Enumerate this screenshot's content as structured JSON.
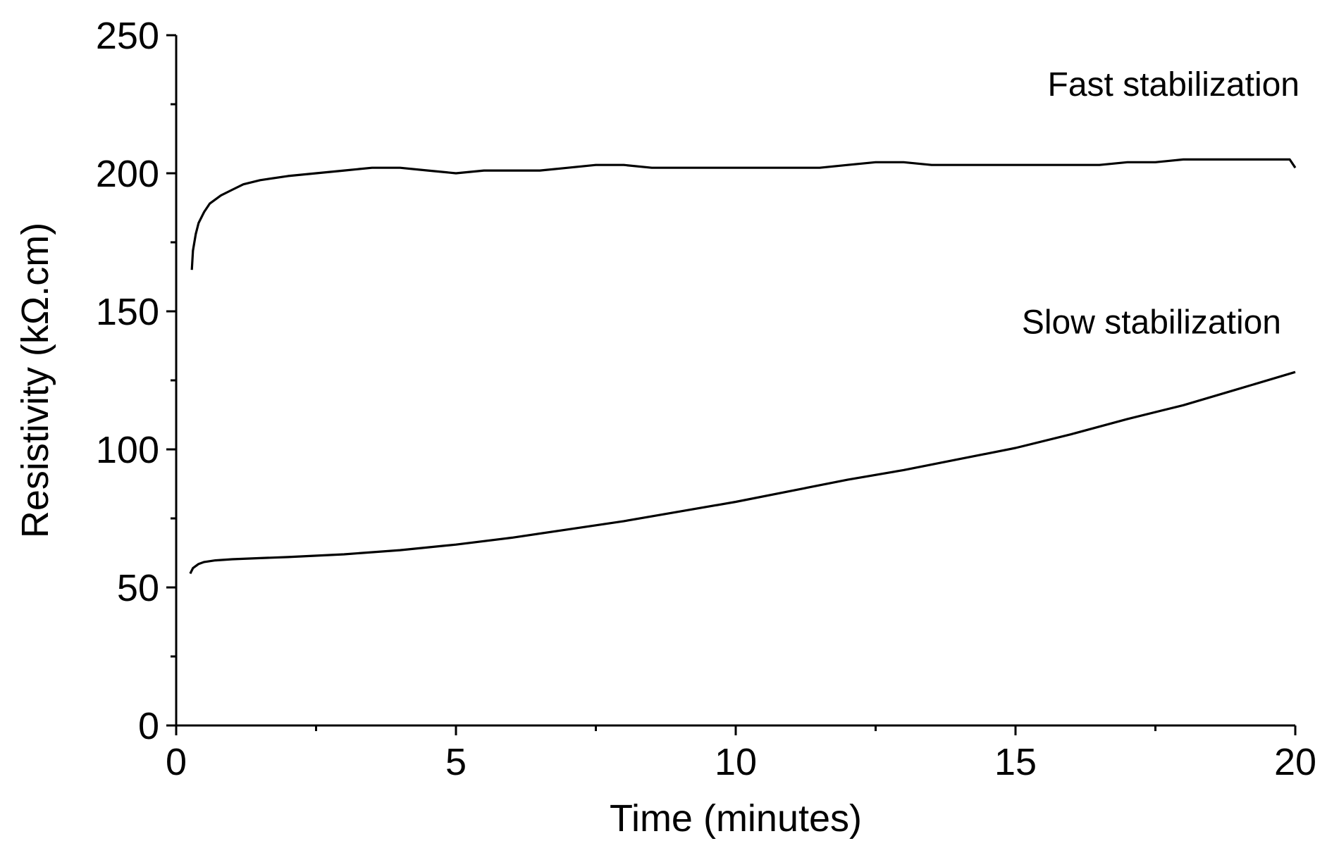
{
  "chart_data": {
    "type": "line",
    "title": "",
    "xlabel": "Time (minutes)",
    "ylabel": "Resistivity (kΩ.cm)",
    "xlim": [
      0,
      20
    ],
    "ylim": [
      0,
      250
    ],
    "xticks": [
      0,
      5,
      10,
      15,
      20
    ],
    "xtick_labels": [
      "0",
      "5",
      "10",
      "15",
      "20"
    ],
    "yticks": [
      0,
      50,
      100,
      150,
      200,
      250
    ],
    "ytick_labels": [
      "0",
      "50",
      "100",
      "150",
      "200",
      "250"
    ],
    "x_minor_step": 2.5,
    "y_minor_step": 25,
    "grid": false,
    "series": [
      {
        "name": "Fast stabilization",
        "color": "#000000",
        "x": [
          0.28,
          0.3,
          0.35,
          0.4,
          0.5,
          0.6,
          0.8,
          1.0,
          1.2,
          1.5,
          2.0,
          2.5,
          3.0,
          3.5,
          4.0,
          4.5,
          5.0,
          5.5,
          6.0,
          6.5,
          7.0,
          7.5,
          8.0,
          8.5,
          9.0,
          9.5,
          10.0,
          10.5,
          11.0,
          11.5,
          12.0,
          12.5,
          13.0,
          13.5,
          14.0,
          14.5,
          15.0,
          15.5,
          16.0,
          16.5,
          17.0,
          17.5,
          18.0,
          18.5,
          19.0,
          19.5,
          19.9,
          20.0
        ],
        "y": [
          165,
          172,
          178,
          182,
          186,
          189,
          192,
          194,
          196,
          197.5,
          199,
          200,
          201,
          202,
          202,
          201,
          200,
          201,
          201,
          201,
          202,
          203,
          203,
          202,
          202,
          202,
          202,
          202,
          202,
          202,
          203,
          204,
          204,
          203,
          203,
          203,
          203,
          203,
          203,
          203,
          204,
          204,
          205,
          205,
          205,
          205,
          205,
          202
        ]
      },
      {
        "name": "Slow stabilization",
        "color": "#000000",
        "x": [
          0.25,
          0.3,
          0.4,
          0.5,
          0.7,
          1.0,
          1.5,
          2.0,
          3.0,
          4.0,
          5.0,
          6.0,
          7.0,
          8.0,
          9.0,
          10.0,
          11.0,
          12.0,
          13.0,
          14.0,
          15.0,
          16.0,
          17.0,
          18.0,
          19.0,
          20.0
        ],
        "y": [
          55,
          57,
          58.5,
          59.2,
          59.8,
          60.2,
          60.6,
          61,
          62,
          63.5,
          65.5,
          68,
          71,
          74,
          77.5,
          81,
          85,
          89,
          92.5,
          96.5,
          100.5,
          105.5,
          111,
          116,
          122,
          128
        ]
      }
    ],
    "annotations": [
      {
        "text": "Fast stabilization",
        "series": "Fast stabilization"
      },
      {
        "text": "Slow stabilization",
        "series": "Slow stabilization"
      }
    ]
  }
}
